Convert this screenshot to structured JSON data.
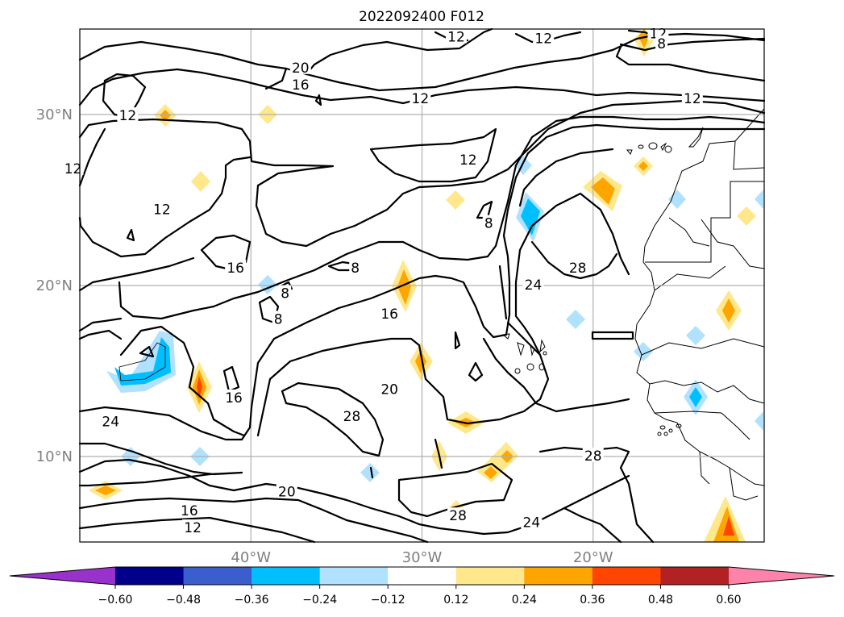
{
  "title": "2022092400 F012",
  "lat_labels": [
    {
      "text": "30°N",
      "lat": 30
    },
    {
      "text": "20°N",
      "lat": 20
    },
    {
      "text": "10°N",
      "lat": 10
    }
  ],
  "lon_labels": [
    {
      "text": "40°W",
      "lon": -40
    },
    {
      "text": "30°W",
      "lon": -30
    },
    {
      "text": "20°W",
      "lon": -20
    }
  ],
  "contour_labels": [
    {
      "text": "12",
      "lon": -28.0,
      "lat": 34.5
    },
    {
      "text": "12",
      "lon": -22.9,
      "lat": 34.4
    },
    {
      "text": "12",
      "lon": -16.2,
      "lat": 34.7
    },
    {
      "text": "8",
      "lon": -16.0,
      "lat": 34.1
    },
    {
      "text": "20",
      "lon": -37.1,
      "lat": 32.7
    },
    {
      "text": "16",
      "lon": -37.1,
      "lat": 31.7
    },
    {
      "text": "12",
      "lon": -30.1,
      "lat": 30.9
    },
    {
      "text": "12",
      "lon": -14.2,
      "lat": 30.9
    },
    {
      "text": "12",
      "lon": -47.2,
      "lat": 29.9
    },
    {
      "text": "12",
      "lon": -50.4,
      "lat": 26.8
    },
    {
      "text": "12",
      "lon": -27.3,
      "lat": 27.3
    },
    {
      "text": "12",
      "lon": -45.2,
      "lat": 24.4
    },
    {
      "text": "8",
      "lon": -26.1,
      "lat": 23.6
    },
    {
      "text": "16",
      "lon": -40.9,
      "lat": 21.0
    },
    {
      "text": "8",
      "lon": -33.9,
      "lat": 21.0
    },
    {
      "text": "28",
      "lon": -20.9,
      "lat": 21.0
    },
    {
      "text": "24",
      "lon": -23.5,
      "lat": 20.0
    },
    {
      "text": "8",
      "lon": -38.0,
      "lat": 19.5
    },
    {
      "text": "16",
      "lon": -31.9,
      "lat": 18.3
    },
    {
      "text": "8",
      "lon": -38.4,
      "lat": 18.0
    },
    {
      "text": "20",
      "lon": -31.9,
      "lat": 13.9
    },
    {
      "text": "16",
      "lon": -41.0,
      "lat": 13.4
    },
    {
      "text": "28",
      "lon": -34.1,
      "lat": 12.3
    },
    {
      "text": "24",
      "lon": -48.2,
      "lat": 12.0
    },
    {
      "text": "28",
      "lon": -20.0,
      "lat": 10.0
    },
    {
      "text": "20",
      "lon": -37.9,
      "lat": 7.9
    },
    {
      "text": "16",
      "lon": -43.6,
      "lat": 6.8
    },
    {
      "text": "12",
      "lon": -43.4,
      "lat": 5.8
    },
    {
      "text": "28",
      "lon": -27.9,
      "lat": 6.5
    },
    {
      "text": "24",
      "lon": -23.6,
      "lat": 6.1
    }
  ],
  "colorbar": {
    "ticks": [
      "−0.60",
      "−0.48",
      "−0.36",
      "−0.24",
      "−0.12",
      "0.12",
      "0.24",
      "0.36",
      "0.48",
      "0.60"
    ],
    "colors": {
      "under": "#9932cc",
      "bins": [
        "#00008b",
        "#3a5fcd",
        "#00bfff",
        "#b0e2ff",
        "#ffffff",
        "#ffe78c",
        "#ffa500",
        "#ff4500",
        "#b22222"
      ],
      "over": "#ff82ab"
    }
  },
  "map": {
    "projection": "PlateCarree",
    "lon_range": [
      -50,
      -10
    ],
    "lat_range": [
      5,
      35
    ]
  }
}
